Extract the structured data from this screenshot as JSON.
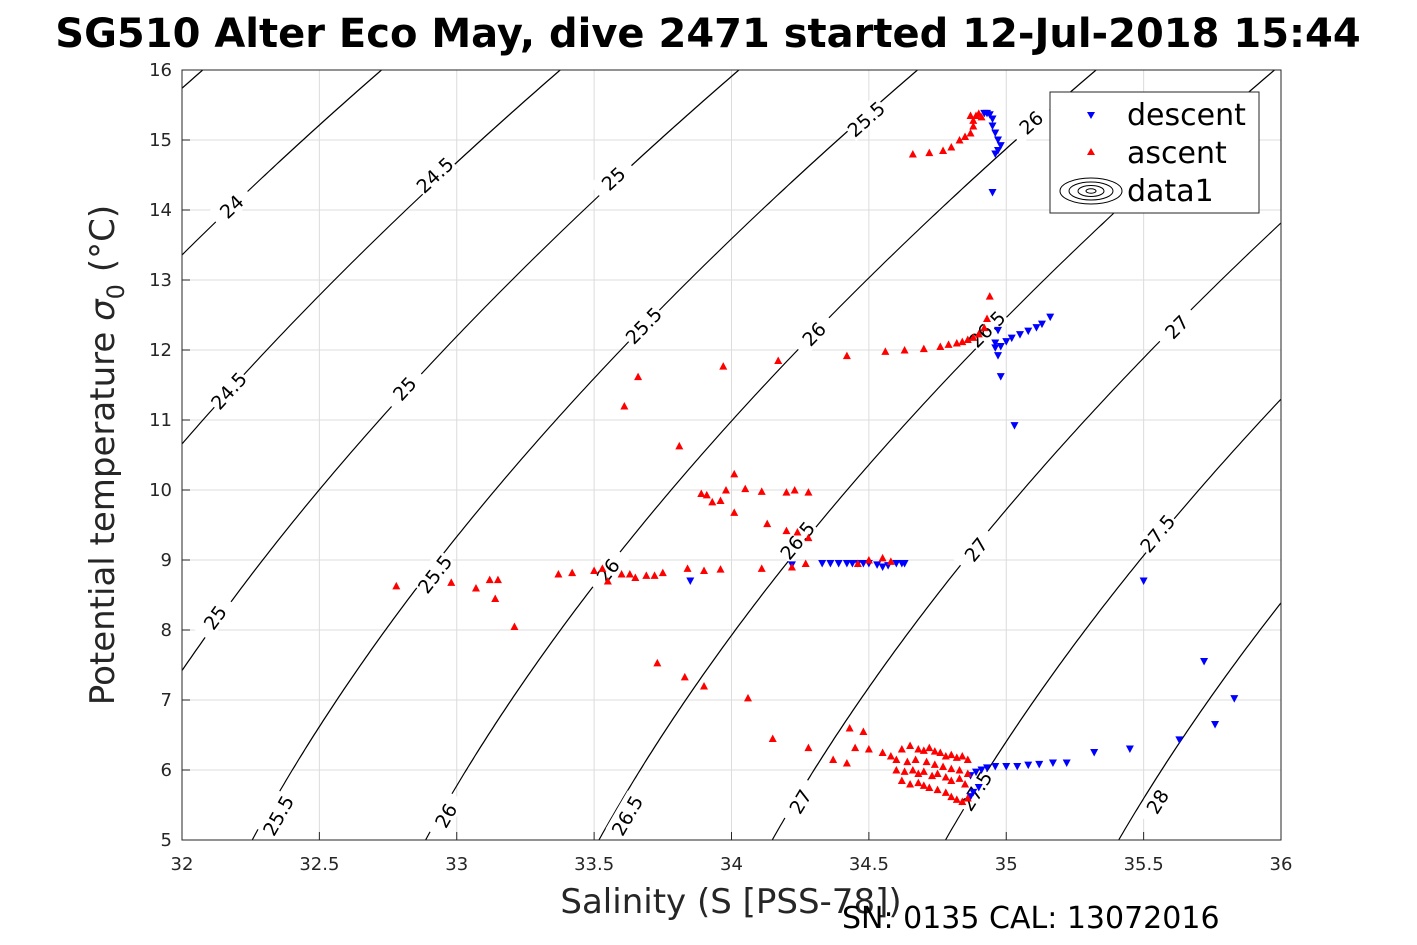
{
  "chart_data": {
    "type": "scatter",
    "title": "SG510 Alter Eco May, dive 2471 started 12-Jul-2018 15:44",
    "xlabel": "Salinity (S [PSS-78])",
    "ylabel": "Potential temperature",
    "ylabel_symbol": "σ",
    "ylabel_subscript": "0",
    "ylabel_unit": "(°C)",
    "footer": "SN: 0135  CAL: 13072016",
    "xlim": [
      32,
      36
    ],
    "ylim": [
      5,
      16
    ],
    "xticks": [
      "32",
      "32.5",
      "33",
      "33.5",
      "34",
      "34.5",
      "35",
      "35.5",
      "36"
    ],
    "yticks": [
      "5",
      "6",
      "7",
      "8",
      "9",
      "10",
      "11",
      "12",
      "13",
      "14",
      "15",
      "16"
    ],
    "grid": true,
    "legend": {
      "placement": "top-right",
      "entries": [
        "descent",
        "ascent",
        "data1"
      ]
    },
    "colors": {
      "descent": "#0000ff",
      "ascent": "#ff0000",
      "contour": "#000000"
    },
    "contours": {
      "levels": [
        "24",
        "24.5",
        "25",
        "25.5",
        "26",
        "26.5",
        "27",
        "27.5",
        "28"
      ],
      "labels": [
        {
          "text": "24",
          "x": 32.18,
          "y": 14.05
        },
        {
          "text": "24.5",
          "x": 32.92,
          "y": 14.5
        },
        {
          "text": "25",
          "x": 33.57,
          "y": 14.45
        },
        {
          "text": "25.5",
          "x": 34.49,
          "y": 15.3
        },
        {
          "text": "26",
          "x": 35.09,
          "y": 15.25
        },
        {
          "text": "24.5",
          "x": 32.17,
          "y": 11.42
        },
        {
          "text": "25",
          "x": 32.81,
          "y": 11.45
        },
        {
          "text": "25.5",
          "x": 33.68,
          "y": 12.35
        },
        {
          "text": "26",
          "x": 34.3,
          "y": 12.23
        },
        {
          "text": "26.5",
          "x": 34.93,
          "y": 12.3
        },
        {
          "text": "27",
          "x": 35.62,
          "y": 12.33
        },
        {
          "text": "25",
          "x": 32.12,
          "y": 8.18
        },
        {
          "text": "25.5",
          "x": 32.92,
          "y": 8.8
        },
        {
          "text": "26",
          "x": 33.55,
          "y": 8.85
        },
        {
          "text": "26.5",
          "x": 34.24,
          "y": 9.28
        },
        {
          "text": "27",
          "x": 34.89,
          "y": 9.15
        },
        {
          "text": "27.5",
          "x": 35.55,
          "y": 9.38
        },
        {
          "text": "25.5",
          "x": 32.35,
          "y": 5.35
        },
        {
          "text": "26",
          "x": 32.96,
          "y": 5.35
        },
        {
          "text": "26.5",
          "x": 33.62,
          "y": 5.35
        },
        {
          "text": "27",
          "x": 34.25,
          "y": 5.55
        },
        {
          "text": "27.5",
          "x": 34.89,
          "y": 5.7
        },
        {
          "text": "28",
          "x": 35.55,
          "y": 5.55
        }
      ]
    },
    "series": [
      {
        "name": "descent",
        "marker": "triangle-down",
        "points": [
          [
            34.92,
            15.38
          ],
          [
            34.93,
            15.38
          ],
          [
            34.94,
            15.36
          ],
          [
            34.95,
            15.3
          ],
          [
            34.95,
            15.2
          ],
          [
            34.96,
            15.1
          ],
          [
            34.97,
            15.0
          ],
          [
            34.98,
            14.92
          ],
          [
            34.97,
            14.85
          ],
          [
            34.96,
            14.8
          ],
          [
            34.95,
            14.25
          ],
          [
            34.97,
            12.28
          ],
          [
            34.96,
            12.1
          ],
          [
            34.96,
            12.03
          ],
          [
            34.97,
            11.92
          ],
          [
            34.98,
            12.05
          ],
          [
            35.0,
            12.12
          ],
          [
            35.02,
            12.17
          ],
          [
            35.05,
            12.22
          ],
          [
            35.08,
            12.27
          ],
          [
            35.11,
            12.32
          ],
          [
            35.13,
            12.37
          ],
          [
            35.16,
            12.47
          ],
          [
            34.98,
            11.62
          ],
          [
            35.03,
            10.92
          ],
          [
            34.33,
            8.95
          ],
          [
            34.36,
            8.95
          ],
          [
            34.39,
            8.95
          ],
          [
            34.42,
            8.95
          ],
          [
            34.44,
            8.95
          ],
          [
            34.46,
            8.95
          ],
          [
            34.48,
            8.95
          ],
          [
            34.5,
            8.95
          ],
          [
            34.53,
            8.93
          ],
          [
            34.55,
            8.9
          ],
          [
            34.57,
            8.92
          ],
          [
            34.6,
            8.95
          ],
          [
            34.62,
            8.95
          ],
          [
            34.63,
            8.95
          ],
          [
            34.22,
            8.93
          ],
          [
            33.85,
            8.7
          ],
          [
            34.87,
            5.92
          ],
          [
            34.89,
            5.97
          ],
          [
            34.91,
            6.0
          ],
          [
            34.93,
            6.03
          ],
          [
            34.96,
            6.05
          ],
          [
            35.0,
            6.05
          ],
          [
            35.04,
            6.05
          ],
          [
            35.08,
            6.07
          ],
          [
            35.12,
            6.08
          ],
          [
            35.17,
            6.1
          ],
          [
            35.22,
            6.1
          ],
          [
            35.32,
            6.25
          ],
          [
            35.45,
            6.3
          ],
          [
            35.63,
            6.43
          ],
          [
            35.76,
            6.65
          ],
          [
            35.83,
            7.02
          ],
          [
            35.72,
            7.55
          ],
          [
            35.5,
            8.7
          ],
          [
            34.87,
            5.62
          ],
          [
            34.88,
            5.68
          ],
          [
            34.9,
            5.75
          ]
        ]
      },
      {
        "name": "ascent",
        "marker": "triangle-up",
        "points": [
          [
            34.66,
            14.8
          ],
          [
            34.72,
            14.82
          ],
          [
            34.77,
            14.85
          ],
          [
            34.8,
            14.9
          ],
          [
            34.83,
            15.0
          ],
          [
            34.85,
            15.05
          ],
          [
            34.87,
            15.1
          ],
          [
            34.88,
            15.2
          ],
          [
            34.88,
            15.28
          ],
          [
            34.89,
            15.35
          ],
          [
            34.9,
            15.38
          ],
          [
            34.91,
            15.33
          ],
          [
            34.87,
            15.35
          ],
          [
            34.56,
            11.98
          ],
          [
            34.63,
            12.0
          ],
          [
            34.7,
            12.02
          ],
          [
            34.76,
            12.05
          ],
          [
            34.79,
            12.08
          ],
          [
            34.82,
            12.1
          ],
          [
            34.84,
            12.12
          ],
          [
            34.86,
            12.15
          ],
          [
            34.88,
            12.18
          ],
          [
            34.9,
            12.23
          ],
          [
            34.92,
            12.32
          ],
          [
            34.93,
            12.45
          ],
          [
            34.94,
            12.77
          ],
          [
            34.42,
            11.92
          ],
          [
            34.17,
            11.85
          ],
          [
            33.97,
            11.77
          ],
          [
            33.66,
            11.62
          ],
          [
            33.61,
            11.2
          ],
          [
            33.81,
            10.63
          ],
          [
            34.01,
            10.23
          ],
          [
            33.98,
            10.0
          ],
          [
            34.05,
            10.02
          ],
          [
            33.89,
            9.95
          ],
          [
            33.91,
            9.93
          ],
          [
            33.93,
            9.83
          ],
          [
            33.96,
            9.85
          ],
          [
            34.11,
            9.98
          ],
          [
            34.2,
            9.97
          ],
          [
            34.23,
            10.0
          ],
          [
            34.28,
            9.97
          ],
          [
            34.01,
            9.68
          ],
          [
            34.13,
            9.52
          ],
          [
            34.2,
            9.42
          ],
          [
            34.24,
            9.4
          ],
          [
            34.28,
            9.32
          ],
          [
            32.78,
            8.63
          ],
          [
            32.98,
            8.68
          ],
          [
            33.07,
            8.6
          ],
          [
            33.12,
            8.72
          ],
          [
            33.15,
            8.72
          ],
          [
            33.14,
            8.45
          ],
          [
            33.21,
            8.05
          ],
          [
            33.37,
            8.8
          ],
          [
            33.42,
            8.82
          ],
          [
            33.5,
            8.85
          ],
          [
            33.53,
            8.88
          ],
          [
            33.55,
            8.7
          ],
          [
            33.6,
            8.8
          ],
          [
            33.63,
            8.8
          ],
          [
            33.65,
            8.75
          ],
          [
            33.69,
            8.78
          ],
          [
            33.72,
            8.78
          ],
          [
            33.75,
            8.82
          ],
          [
            33.84,
            8.88
          ],
          [
            33.9,
            8.85
          ],
          [
            33.96,
            8.87
          ],
          [
            34.11,
            8.88
          ],
          [
            34.22,
            8.9
          ],
          [
            34.27,
            8.95
          ],
          [
            34.46,
            8.95
          ],
          [
            34.5,
            9.0
          ],
          [
            34.55,
            9.03
          ],
          [
            34.58,
            8.98
          ],
          [
            33.73,
            7.53
          ],
          [
            33.83,
            7.33
          ],
          [
            33.9,
            7.2
          ],
          [
            34.06,
            7.03
          ],
          [
            34.15,
            6.45
          ],
          [
            34.28,
            6.32
          ],
          [
            34.37,
            6.15
          ],
          [
            34.43,
            6.6
          ],
          [
            34.48,
            6.55
          ],
          [
            34.45,
            6.32
          ],
          [
            34.42,
            6.1
          ],
          [
            34.5,
            6.3
          ],
          [
            34.55,
            6.25
          ],
          [
            34.58,
            6.2
          ],
          [
            34.6,
            6.15
          ],
          [
            34.62,
            6.3
          ],
          [
            34.65,
            6.35
          ],
          [
            34.68,
            6.3
          ],
          [
            34.7,
            6.28
          ],
          [
            34.72,
            6.32
          ],
          [
            34.74,
            6.27
          ],
          [
            34.76,
            6.25
          ],
          [
            34.78,
            6.2
          ],
          [
            34.8,
            6.22
          ],
          [
            34.82,
            6.18
          ],
          [
            34.84,
            6.2
          ],
          [
            34.86,
            6.15
          ],
          [
            34.6,
            6.0
          ],
          [
            34.63,
            5.98
          ],
          [
            34.66,
            6.0
          ],
          [
            34.68,
            5.95
          ],
          [
            34.7,
            5.98
          ],
          [
            34.73,
            5.92
          ],
          [
            34.75,
            5.95
          ],
          [
            34.78,
            5.9
          ],
          [
            34.8,
            5.85
          ],
          [
            34.83,
            5.88
          ],
          [
            34.85,
            5.8
          ],
          [
            34.62,
            5.85
          ],
          [
            34.65,
            5.8
          ],
          [
            34.68,
            5.82
          ],
          [
            34.7,
            5.78
          ],
          [
            34.72,
            5.75
          ],
          [
            34.75,
            5.72
          ],
          [
            34.78,
            5.68
          ],
          [
            34.8,
            5.62
          ],
          [
            34.82,
            5.58
          ],
          [
            34.84,
            5.55
          ],
          [
            34.86,
            5.6
          ],
          [
            34.64,
            6.12
          ],
          [
            34.67,
            6.15
          ],
          [
            34.71,
            6.12
          ],
          [
            34.74,
            6.08
          ],
          [
            34.77,
            6.05
          ],
          [
            34.8,
            6.02
          ],
          [
            34.83,
            6.0
          ],
          [
            34.86,
            5.95
          ]
        ]
      }
    ]
  }
}
